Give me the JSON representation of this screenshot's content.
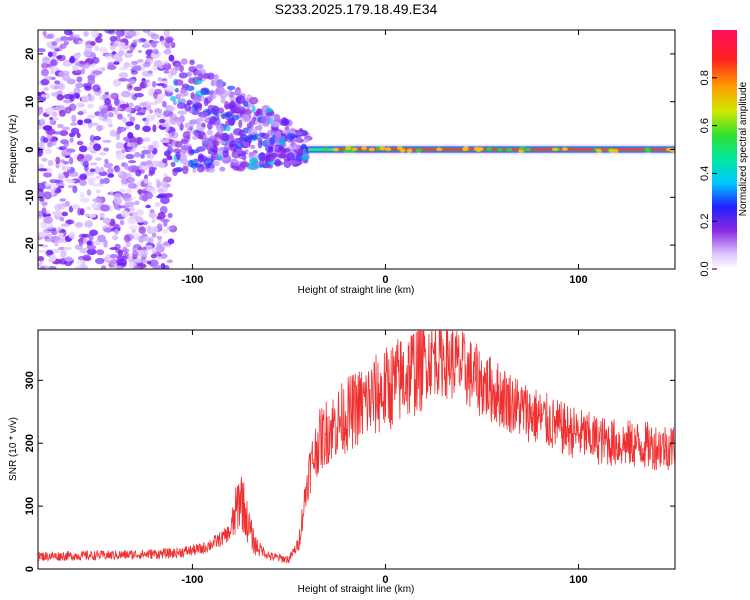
{
  "title": "S233.2025.179.18.49.E34",
  "chart_data": [
    {
      "type": "heatmap",
      "xlabel": "Height of straight line (km)",
      "ylabel": "Frequency (Hz)",
      "xlim": [
        -180,
        150
      ],
      "ylim": [
        -25,
        25
      ],
      "x_ticks": [
        -100,
        0,
        100
      ],
      "y_ticks": [
        -20,
        -10,
        0,
        10,
        20
      ],
      "colorbar": {
        "label": "Normalized spectral amplitude",
        "range": [
          0,
          1
        ],
        "ticks": [
          0.0,
          0.2,
          0.4,
          0.6,
          0.8
        ]
      },
      "features": [
        {
          "region": "noise",
          "x_range": [
            -180,
            -110
          ],
          "y_range": [
            -25,
            25
          ],
          "amplitude": 0.15
        },
        {
          "region": "transition",
          "x_range": [
            -110,
            -40
          ],
          "y_center_start": 8,
          "y_center_end": 0,
          "amplitude": 0.25
        },
        {
          "region": "carrier",
          "x_range": [
            -40,
            150
          ],
          "y_center": 0,
          "amplitude": 0.9
        }
      ]
    },
    {
      "type": "line",
      "xlabel": "Height of straight line (km)",
      "ylabel": "SNR (10 * v/v)",
      "xlim": [
        -180,
        150
      ],
      "ylim": [
        0,
        380
      ],
      "x_ticks": [
        -100,
        0,
        100
      ],
      "y_ticks": [
        0,
        100,
        200,
        300
      ],
      "line_color": "#f03030",
      "profile_x": [
        -180,
        -140,
        -110,
        -95,
        -85,
        -80,
        -75,
        -72,
        -68,
        -60,
        -50,
        -45,
        -40,
        -35,
        -30,
        -20,
        -10,
        0,
        10,
        20,
        25,
        30,
        40,
        50,
        60,
        70,
        80,
        90,
        100,
        110,
        120,
        130,
        140,
        150
      ],
      "profile_y": [
        20,
        22,
        25,
        32,
        48,
        60,
        120,
        80,
        40,
        20,
        15,
        40,
        150,
        200,
        220,
        245,
        265,
        285,
        305,
        330,
        340,
        335,
        320,
        295,
        275,
        255,
        240,
        225,
        215,
        205,
        200,
        198,
        195,
        195
      ]
    }
  ]
}
